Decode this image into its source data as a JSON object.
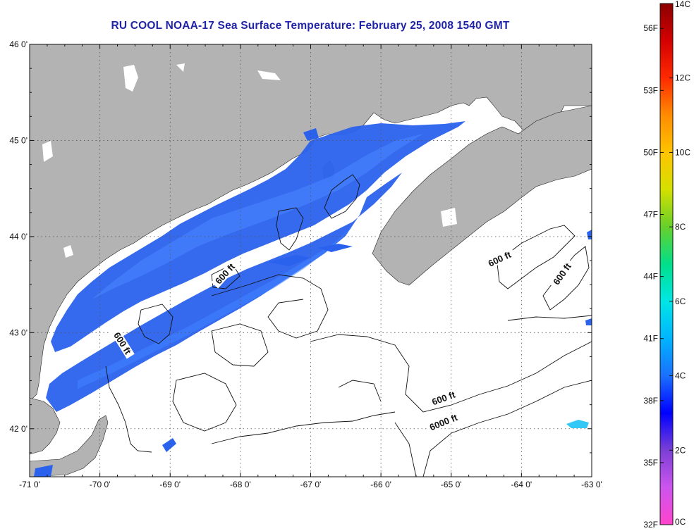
{
  "title": "RU COOL  NOAA-17  Sea Surface Temperature:  February 25, 2008 1540 GMT",
  "map": {
    "lon_range": [
      -71,
      -63
    ],
    "lat_range": [
      41.5,
      46
    ],
    "lon_ticks": [
      -71,
      -70,
      -69,
      -68,
      -67,
      -66,
      -65,
      -64,
      -63
    ],
    "lon_tick_labels": [
      "-71 0'",
      "-70 0'",
      "-69 0'",
      "-68 0'",
      "-67 0'",
      "-66 0'",
      "-65 0'",
      "-64 0'",
      "-63 0'"
    ],
    "lat_ticks": [
      46,
      45,
      44,
      43,
      42
    ],
    "lat_tick_labels": [
      "46 0'",
      "45 0'",
      "44 0'",
      "43 0'",
      "42 0'"
    ],
    "grid": "dotted",
    "land_color": "#b3b3b3",
    "water_color": "#ffffff"
  },
  "contour_labels": [
    {
      "text": "600 ft",
      "lon": -68.2,
      "lat": 43.6,
      "angle": -48
    },
    {
      "text": "600 ft",
      "lon": -69.7,
      "lat": 42.88,
      "angle": 58
    },
    {
      "text": "600 ft",
      "lon": -64.3,
      "lat": 43.75,
      "angle": -25
    },
    {
      "text": "600 ft",
      "lon": -63.4,
      "lat": 43.6,
      "angle": -55
    },
    {
      "text": "600 ft",
      "lon": -65.1,
      "lat": 42.3,
      "angle": -20
    },
    {
      "text": "6000 ft",
      "lon": -65.1,
      "lat": 42.05,
      "angle": -22
    }
  ],
  "colorbar": {
    "colors": [
      "#ff44cc",
      "#cc55ee",
      "#7b3fd6",
      "#0000ff",
      "#1a70ff",
      "#00b4ff",
      "#00e6e6",
      "#00e08a",
      "#66d02a",
      "#d4e000",
      "#ffc400",
      "#ff8c00",
      "#ff2a00",
      "#d40000",
      "#8b0000"
    ],
    "celsius_labels": [
      {
        "text": "14C",
        "value": 14
      },
      {
        "text": "12C",
        "value": 12
      },
      {
        "text": "10C",
        "value": 10
      },
      {
        "text": "8C",
        "value": 8
      },
      {
        "text": "6C",
        "value": 6
      },
      {
        "text": "4C",
        "value": 4
      },
      {
        "text": "2C",
        "value": 2
      },
      {
        "text": "0C",
        "value": 0
      }
    ],
    "fahrenheit_labels": [
      {
        "text": "56F",
        "value": 56
      },
      {
        "text": "53F",
        "value": 53
      },
      {
        "text": "50F",
        "value": 50
      },
      {
        "text": "47F",
        "value": 47
      },
      {
        "text": "44F",
        "value": 44
      },
      {
        "text": "41F",
        "value": 41
      },
      {
        "text": "38F",
        "value": 38
      },
      {
        "text": "35F",
        "value": 35
      },
      {
        "text": "32F",
        "value": 32
      }
    ]
  }
}
